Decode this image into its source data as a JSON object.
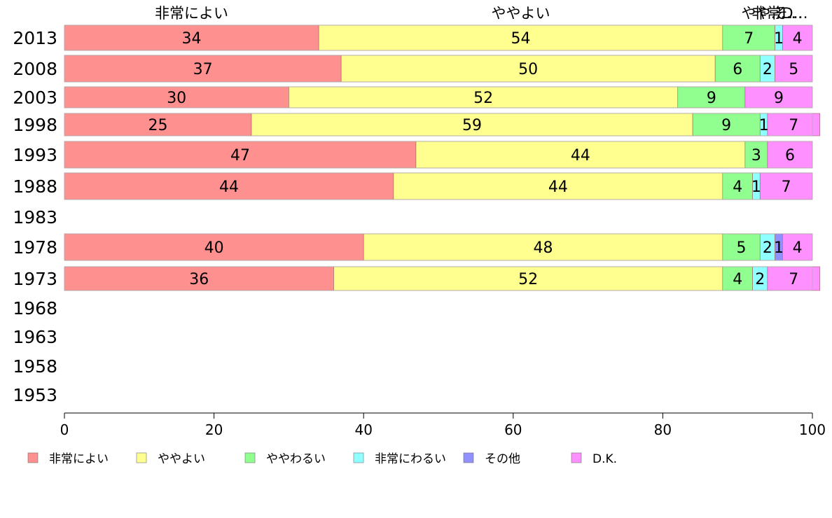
{
  "chart_data": {
    "type": "bar",
    "orientation": "horizontal",
    "stacked": true,
    "categories": [
      "2013",
      "2008",
      "2003",
      "1998",
      "1993",
      "1988",
      "1983",
      "1978",
      "1973",
      "1968",
      "1963",
      "1958",
      "1953"
    ],
    "series": [
      {
        "name": "非常によい",
        "color": "#ff9090",
        "values": [
          34,
          37,
          30,
          25,
          47,
          44,
          null,
          40,
          36,
          null,
          null,
          null,
          null
        ]
      },
      {
        "name": "ややよい",
        "color": "#ffff90",
        "values": [
          54,
          50,
          52,
          59,
          44,
          44,
          null,
          48,
          52,
          null,
          null,
          null,
          null
        ]
      },
      {
        "name": "ややわるい",
        "color": "#90ff90",
        "values": [
          7,
          6,
          9,
          9,
          3,
          4,
          null,
          5,
          4,
          null,
          null,
          null,
          null
        ]
      },
      {
        "name": "非常にわるい",
        "color": "#90ffff",
        "values": [
          1,
          2,
          0,
          1,
          0,
          1,
          null,
          2,
          2,
          null,
          null,
          null,
          null
        ]
      },
      {
        "name": "その他",
        "color": "#9090ff",
        "values": [
          0,
          0,
          0,
          0,
          0,
          0,
          null,
          1,
          0,
          null,
          null,
          null,
          null
        ]
      },
      {
        "name": "D.K.",
        "color": "#ff90ff",
        "values": [
          4,
          5,
          9,
          7,
          6,
          7,
          null,
          4,
          7,
          null,
          null,
          null,
          null
        ]
      }
    ],
    "segment_labels": [
      [
        "34",
        "54",
        "7",
        "1",
        "",
        "4"
      ],
      [
        "37",
        "50",
        "6",
        "2",
        "",
        "5"
      ],
      [
        "30",
        "52",
        "9",
        "",
        "",
        "9"
      ],
      [
        "25",
        "59",
        "9",
        "1",
        "",
        "7"
      ],
      [
        "47",
        "44",
        "3",
        "",
        "",
        "6"
      ],
      [
        "44",
        "44",
        "4",
        "1",
        "",
        "7"
      ],
      [
        "",
        "",
        "",
        "",
        "",
        ""
      ],
      [
        "40",
        "48",
        "5",
        "2",
        "1",
        "4"
      ],
      [
        "36",
        "52",
        "4",
        "2",
        "",
        "7"
      ],
      [
        "",
        "",
        "",
        "",
        "",
        ""
      ],
      [
        "",
        "",
        "",
        "",
        "",
        ""
      ],
      [
        "",
        "",
        "",
        "",
        "",
        ""
      ],
      [
        "",
        "",
        "",
        "",
        "",
        ""
      ]
    ],
    "top_labels": [
      "非常によい",
      "ややよい",
      "やや…",
      "非常…",
      "そ…",
      "D…"
    ],
    "xlim": [
      0,
      100
    ],
    "xticks": [
      "0",
      "20",
      "40",
      "60",
      "80",
      "100"
    ],
    "grid": false,
    "legend_position": "bottom",
    "title": "",
    "xlabel": "",
    "ylabel": ""
  }
}
